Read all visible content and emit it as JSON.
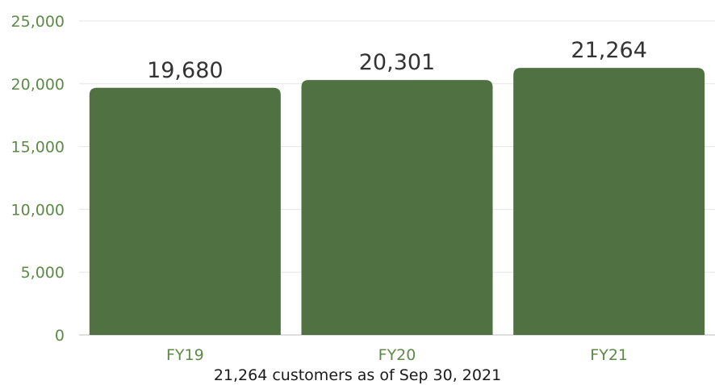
{
  "colors": {
    "bar": "#507142",
    "axis_text": "#5e8a48",
    "value_label": "#333333",
    "gridline": "#e6e6e6",
    "axis_line": "#bfbfbf"
  },
  "caption": "21,264 customers as of Sep 30, 2021",
  "chart_data": {
    "type": "bar",
    "title": "",
    "xlabel": "",
    "ylabel": "",
    "categories": [
      "FY19",
      "FY20",
      "FY21"
    ],
    "values": [
      19680,
      20301,
      21264
    ],
    "value_labels": [
      "19,680",
      "20,301",
      "21,264"
    ],
    "ylim": [
      0,
      25000
    ],
    "yticks": [
      0,
      5000,
      10000,
      15000,
      20000,
      25000
    ],
    "ytick_labels": [
      "0",
      "5,000",
      "10,000",
      "15,000",
      "20,000",
      "25,000"
    ],
    "grid": true,
    "legend": "none"
  }
}
